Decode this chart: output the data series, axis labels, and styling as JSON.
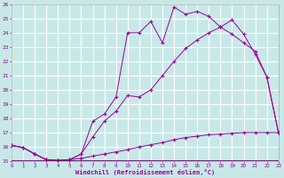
{
  "xlabel": "Windchill (Refroidissement éolien,°C)",
  "bg_color": "#c8e8e8",
  "grid_color": "#ffffff",
  "line_color": "#990099",
  "xlim": [
    0,
    23
  ],
  "ylim": [
    15,
    26
  ],
  "yticks": [
    15,
    16,
    17,
    18,
    19,
    20,
    21,
    22,
    23,
    24,
    25,
    26
  ],
  "xticks": [
    0,
    1,
    2,
    3,
    4,
    5,
    6,
    7,
    8,
    9,
    10,
    11,
    12,
    13,
    14,
    15,
    16,
    17,
    18,
    19,
    20,
    21,
    22,
    23
  ],
  "line1_x": [
    0,
    1,
    2,
    3,
    4,
    5,
    6,
    7,
    8,
    9,
    10,
    11,
    12,
    13,
    14,
    15,
    16,
    17,
    18,
    19,
    20,
    21,
    22,
    23
  ],
  "line1_y": [
    16.1,
    15.95,
    15.5,
    15.1,
    15.05,
    15.1,
    15.2,
    15.35,
    15.5,
    15.65,
    15.8,
    16.0,
    16.15,
    16.3,
    16.5,
    16.65,
    16.75,
    16.85,
    16.9,
    16.95,
    17.0,
    17.0,
    17.0,
    17.0
  ],
  "line2_x": [
    0,
    1,
    2,
    3,
    4,
    5,
    6,
    7,
    8,
    9,
    10,
    11,
    12,
    13,
    14,
    15,
    16,
    17,
    18,
    19,
    20,
    21,
    22,
    23
  ],
  "line2_y": [
    16.1,
    15.95,
    15.5,
    15.1,
    15.05,
    15.1,
    15.5,
    17.8,
    18.3,
    19.5,
    24.0,
    24.0,
    24.8,
    23.3,
    25.8,
    25.3,
    25.5,
    25.15,
    24.4,
    24.9,
    23.9,
    22.5,
    20.9,
    17.0
  ],
  "line3_x": [
    0,
    1,
    2,
    3,
    4,
    5,
    6,
    7,
    8,
    9,
    10,
    11,
    12,
    13,
    14,
    15,
    16,
    17,
    18,
    19,
    20,
    21,
    22,
    23
  ],
  "line3_y": [
    16.1,
    15.95,
    15.5,
    15.1,
    15.05,
    15.1,
    15.5,
    16.7,
    17.8,
    18.5,
    19.6,
    19.5,
    20.0,
    21.0,
    22.0,
    22.9,
    23.5,
    24.0,
    24.4,
    23.9,
    23.3,
    22.7,
    20.9,
    17.0
  ]
}
